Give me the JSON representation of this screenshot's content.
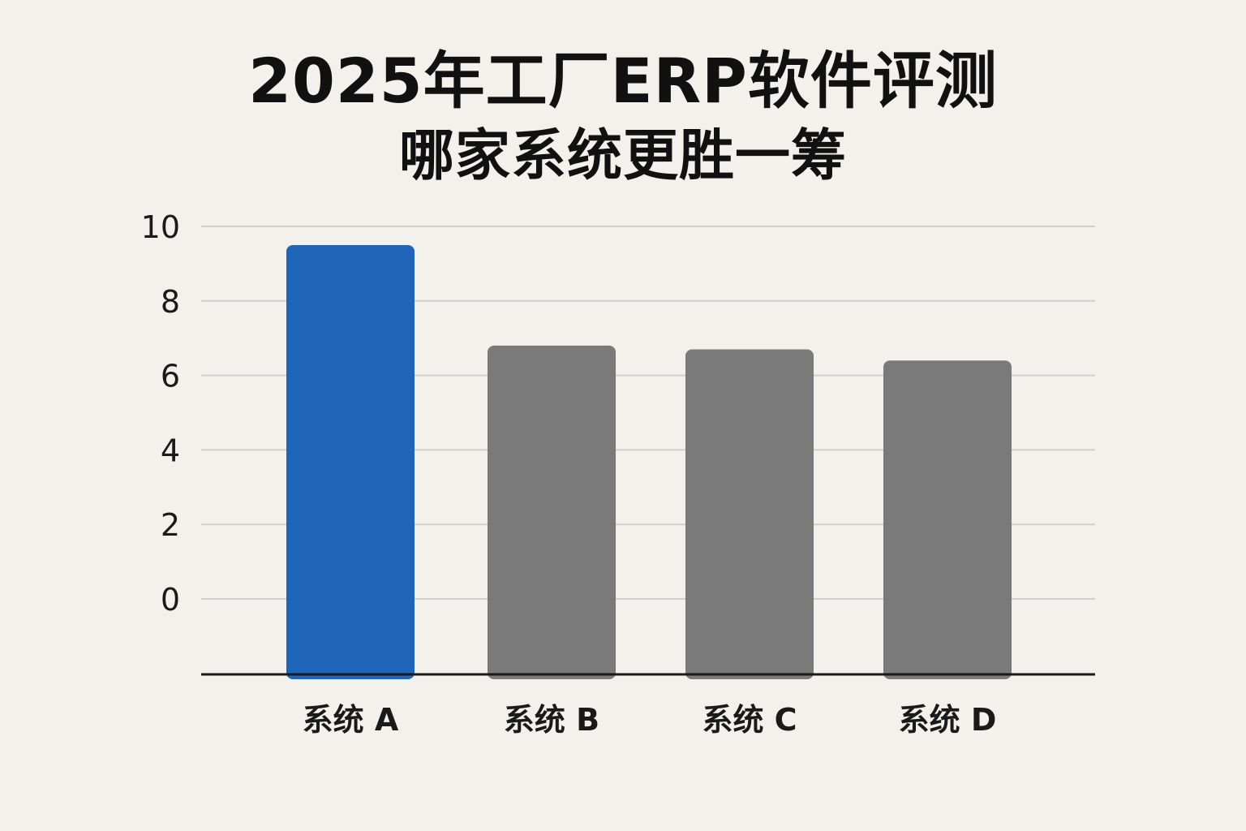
{
  "title_line1": "2025年工厂ERP软件评测",
  "title_line2": "哪家系统更胜一筹",
  "colors": {
    "background": "#f3f1ec",
    "highlight_bar": "#1f66b8",
    "default_bar": "#7a7a7a",
    "gridline": "#cfcfcf",
    "baseline": "#1a1a1a"
  },
  "chart_data": {
    "type": "bar",
    "title": "2025年工厂ERP软件评测 哪家系统更胜一筹",
    "xlabel": "",
    "ylabel": "",
    "categories": [
      "系统 A",
      "系统 B",
      "系统 C",
      "系统 D"
    ],
    "values": [
      9.5,
      6.8,
      6.7,
      6.4
    ],
    "highlight_index": 0,
    "yticks": [
      0,
      2,
      4,
      6,
      8,
      10
    ],
    "ylim": [
      0,
      10
    ],
    "grid": true,
    "legend": "none"
  }
}
